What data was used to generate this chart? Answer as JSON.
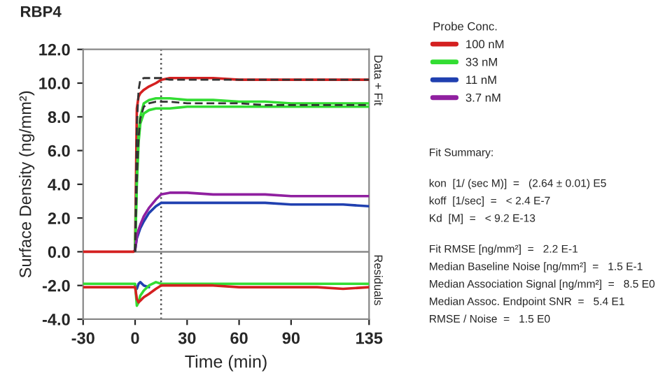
{
  "chart_data": {
    "type": "line",
    "title": "RBP4",
    "xlabel": "Time (min)",
    "ylabel": "Surface Density (ng/mm²)",
    "legend_title": "Probe Conc.",
    "x": [
      -30,
      -20,
      -10,
      -1,
      0,
      1,
      2,
      3,
      5,
      8,
      12,
      15,
      20,
      30,
      45,
      60,
      75,
      90,
      105,
      120,
      135
    ],
    "xlim": [
      -30,
      135
    ],
    "xticks": [
      -30,
      0,
      30,
      60,
      90,
      135
    ],
    "ylim": [
      -4,
      12
    ],
    "yticks": [
      {
        "value": -4,
        "label": "-4.0"
      },
      {
        "value": -2,
        "label": "-2.0"
      },
      {
        "value": 0,
        "label": "0.0"
      },
      {
        "value": 2,
        "label": "2.0"
      },
      {
        "value": 4,
        "label": "4.0"
      },
      {
        "value": 6,
        "label": "6.0"
      },
      {
        "value": 8,
        "label": "8.0"
      },
      {
        "value": 10,
        "label": "10.0"
      },
      {
        "value": 12,
        "label": "12.0"
      }
    ],
    "grid": false,
    "legend": "right",
    "line_style": "solid",
    "marker": "none",
    "series": [
      {
        "name": "100 nM",
        "color": "#d42020",
        "values": [
          0,
          0,
          0,
          0,
          0.1,
          8.5,
          9.2,
          9.4,
          9.6,
          9.8,
          10.0,
          10.2,
          10.3,
          10.3,
          10.3,
          10.2,
          10.2,
          10.2,
          10.2,
          10.2,
          10.2
        ]
      },
      {
        "name": "33 nM",
        "color": "#33dd33",
        "values": [
          null,
          null,
          null,
          null,
          0.1,
          4.5,
          7.0,
          8.0,
          8.8,
          9.0,
          9.1,
          9.1,
          9.1,
          9.0,
          9.0,
          8.9,
          8.9,
          8.8,
          8.8,
          8.8,
          8.8
        ]
      },
      {
        "color": "#33dd33",
        "values": [
          null,
          null,
          null,
          null,
          0.1,
          4.0,
          6.5,
          7.6,
          8.2,
          8.4,
          8.5,
          8.5,
          8.5,
          8.6,
          8.6,
          8.6,
          8.6,
          8.6,
          8.6,
          8.6,
          8.6
        ]
      },
      {
        "name": "11 nM",
        "color": "#2040b0",
        "values": [
          null,
          null,
          null,
          null,
          0.1,
          0.8,
          1.1,
          1.4,
          1.8,
          2.3,
          2.7,
          2.9,
          2.9,
          2.9,
          2.9,
          2.9,
          2.9,
          2.8,
          2.8,
          2.8,
          2.7
        ]
      },
      {
        "name": "3.7 nM",
        "color": "#9020a0",
        "values": [
          null,
          null,
          null,
          null,
          0.1,
          0.9,
          1.3,
          1.6,
          2.1,
          2.6,
          3.1,
          3.4,
          3.5,
          3.5,
          3.4,
          3.4,
          3.4,
          3.3,
          3.3,
          3.3,
          3.3
        ]
      },
      {
        "color": "#333333",
        "line_style": "dashed",
        "values": [
          null,
          null,
          null,
          null,
          0,
          7.5,
          9.6,
          10.2,
          10.3,
          10.3,
          10.3,
          10.3,
          10.2,
          10.2,
          10.2,
          10.2,
          10.2,
          10.2,
          10.2,
          10.2,
          10.2
        ]
      },
      {
        "color": "#333333",
        "line_style": "dashed",
        "values": [
          null,
          null,
          null,
          null,
          0,
          4.2,
          6.8,
          7.9,
          8.6,
          8.8,
          8.9,
          8.9,
          8.9,
          8.8,
          8.8,
          8.8,
          8.7,
          8.7,
          8.7,
          8.7,
          8.7
        ]
      },
      {
        "color": "#2040b0",
        "values": [
          null,
          null,
          null,
          null,
          -2.0,
          -2.2,
          -1.9,
          -1.8,
          -2.0,
          -2.1,
          null,
          null,
          null,
          null,
          null,
          null,
          null,
          null,
          null,
          null,
          null
        ]
      },
      {
        "color": "#33dd33",
        "values": [
          -1.9,
          -1.9,
          -1.9,
          -1.9,
          -1.9,
          -3.2,
          -3.0,
          -2.6,
          -2.3,
          -2.0,
          -1.8,
          -1.9,
          -1.9,
          -1.9,
          -1.9,
          -1.9,
          -1.9,
          -1.9,
          -1.9,
          -1.9,
          -1.9
        ]
      },
      {
        "color": "#d42020",
        "values": [
          -2.1,
          -2.1,
          -2.1,
          -2.1,
          -2.1,
          -2.8,
          -3.0,
          -2.9,
          -2.7,
          -2.5,
          -2.2,
          -2.0,
          -2.0,
          -2.0,
          -2.0,
          -2.1,
          -2.1,
          -2.1,
          -2.1,
          -2.2,
          -2.1
        ]
      }
    ],
    "ref_lines": [
      {
        "axis": "y",
        "value": 0,
        "color": "#888888",
        "line_style": "solid"
      },
      {
        "axis": "x",
        "value": 15,
        "color": "#555555",
        "line_style": "dotted"
      }
    ],
    "annotations": [
      "Data + Fit",
      "Residuals",
      "Fit Summary:",
      "kon  [1/ (sec M)]  =   (2.64 ± 0.01) E5",
      "koff  [1/sec]  =   < 2.4 E-7",
      "Kd  [M]  =   < 9.2 E-13",
      "Fit RMSE [ng/mm²]  =   2.2 E-1",
      "Median Baseline Noise [ng/mm²]  =   1.5 E-1",
      "Median Association Signal [ng/mm²]  =   8.5 E0",
      "Median Assoc. Endpoint SNR  =   5.4 E1",
      "RMSE / Noise  =   1.5 E0"
    ]
  }
}
